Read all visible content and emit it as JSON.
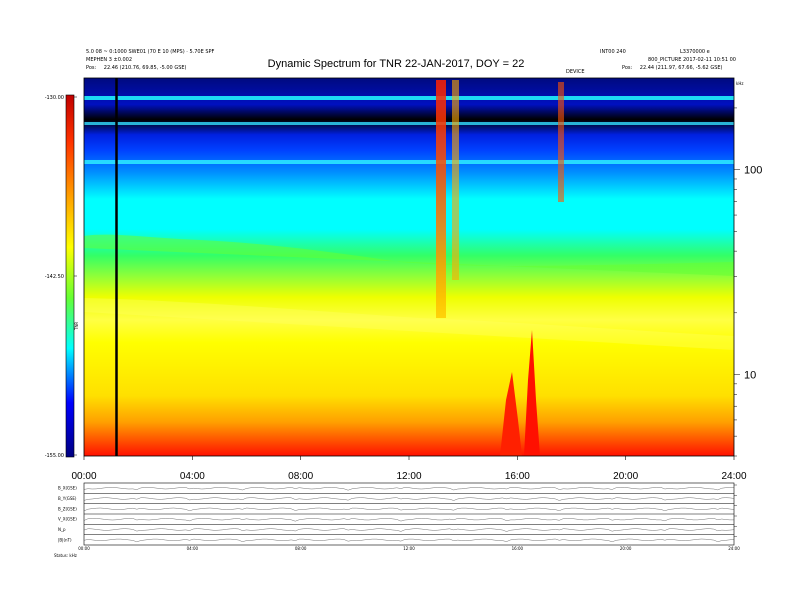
{
  "header": {
    "top_left_line1": "5.0 08 ~ 0:1000 SWE01 (70 E 10 (MPS) · 5.70E SPF",
    "top_left_line2": "MEPHEN 3 ±0.002",
    "top_left_pos_label": "Pos:",
    "top_left_pos_value": "22.46 (210.76, 69.85, -5.00 GSE)",
    "top_right_line1": "INT00 240",
    "top_right_line2": "L3370000 e",
    "top_right_line3": "800_PICTURE 2017-02-11 10:51 00",
    "top_right_pos_label": "Pos:",
    "top_right_pos_value": "22.44 (211.97, 67.66, -5.62 GSE)",
    "center_small": "DEVICE"
  },
  "title": "Dynamic Spectrum for TNR 22-JAN-2017, DOY = 22",
  "chart_data": [
    {
      "type": "heatmap",
      "title": "Dynamic Spectrum for TNR 22-JAN-2017, DOY = 22",
      "colorbar": {
        "ticks": [
          "-130.00",
          "-142.50",
          "-155.00"
        ],
        "range": [
          -155.0,
          -130.0
        ],
        "label": "TNR",
        "colors": [
          "#c00000",
          "#ff3300",
          "#ff9900",
          "#ffff00",
          "#66ff33",
          "#00ffff",
          "#0000ff",
          "#000080"
        ]
      },
      "xlabel": "",
      "xlim": [
        0,
        24
      ],
      "x_ticks": [
        "00:00",
        "04:00",
        "08:00",
        "12:00",
        "16:00",
        "20:00",
        "24:00"
      ],
      "right_axis": {
        "unit_label": "kHz",
        "ticks": [
          {
            "value": 100,
            "label": "100"
          },
          {
            "value": 10,
            "label": "10"
          }
        ],
        "range": [
          4,
          280
        ],
        "scale": "log"
      },
      "features": {
        "event_line_hour": 1.2,
        "burst_hours": [
          13.3,
          13.9,
          17.7
        ],
        "low_freq_enhancement_hours": [
          15.7,
          16.7
        ]
      }
    },
    {
      "type": "line",
      "title": "",
      "panels": [
        {
          "label": "B_X(GSE)",
          "right_ticks": [
            "",
            ""
          ]
        },
        {
          "label": "B_Y(GSE)",
          "right_ticks": [
            "",
            ""
          ]
        },
        {
          "label": "B_Z(GSE)",
          "right_ticks": [
            "",
            ""
          ]
        },
        {
          "label": "V_X(GSE)",
          "right_ticks": [
            "",
            ""
          ]
        },
        {
          "label": "N_p",
          "right_ticks": [
            "",
            ""
          ]
        },
        {
          "label": "|B|(nT)",
          "right_ticks": [
            "",
            ""
          ]
        }
      ],
      "x_ticks": [
        "00:00",
        "04:00",
        "08:00",
        "12:00",
        "16:00",
        "20:00",
        "24:00"
      ],
      "footer_left": "Status: ",
      "footer_value": "kHz"
    }
  ]
}
